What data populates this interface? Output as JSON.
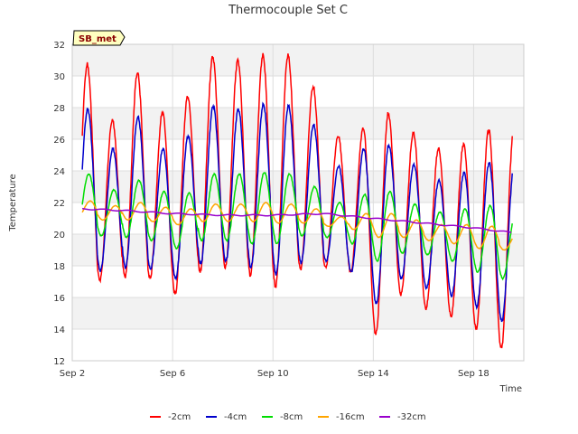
{
  "chart_data": {
    "type": "line",
    "title": "Thermocouple Set C",
    "xlabel": "Time",
    "ylabel": "Temperature",
    "station_badge": "SB_met",
    "x_ticks": [
      "Sep 2",
      "Sep 6",
      "Sep 10",
      "Sep 14",
      "Sep 18"
    ],
    "x_tick_days": [
      2,
      6,
      10,
      14,
      18
    ],
    "xlim_days": [
      2,
      20
    ],
    "ylim": [
      12,
      32
    ],
    "y_ticks": [
      12,
      14,
      16,
      18,
      20,
      22,
      24,
      26,
      28,
      30,
      32
    ],
    "grid": true,
    "legend_position": "bottom",
    "series": [
      {
        "name": "-2cm",
        "color": "#ff0000",
        "daily_max": [
          30.7,
          27.2,
          30.2,
          27.7,
          28.7,
          31.2,
          31.0,
          31.3,
          31.3,
          29.3,
          26.2,
          26.7,
          27.6,
          26.4,
          25.4,
          25.7,
          26.6,
          26.6
        ],
        "daily_min": [
          17.9,
          17.1,
          17.3,
          17.2,
          16.2,
          17.6,
          17.9,
          17.4,
          16.7,
          17.8,
          17.9,
          17.6,
          13.7,
          16.2,
          15.3,
          14.8,
          14.0,
          12.8
        ]
      },
      {
        "name": "-4cm",
        "color": "#0000cc",
        "daily_max": [
          27.9,
          25.4,
          27.4,
          25.4,
          26.2,
          28.1,
          27.9,
          28.2,
          28.1,
          26.9,
          24.3,
          25.4,
          25.6,
          24.4,
          23.4,
          23.9,
          24.5,
          24.4
        ],
        "daily_min": [
          18.6,
          17.7,
          17.9,
          17.8,
          17.2,
          18.1,
          18.3,
          17.9,
          17.5,
          18.2,
          18.3,
          17.6,
          15.6,
          17.2,
          16.6,
          16.1,
          15.4,
          14.5
        ],
        "end_value": 17.6
      },
      {
        "name": "-8cm",
        "color": "#00dd00",
        "daily_max": [
          23.8,
          22.8,
          23.4,
          22.7,
          22.6,
          23.8,
          23.8,
          23.9,
          23.8,
          23.0,
          22.0,
          22.5,
          22.7,
          21.9,
          21.4,
          21.6,
          21.8,
          21.2
        ],
        "daily_min": [
          20.2,
          19.9,
          19.8,
          19.6,
          19.1,
          19.6,
          19.6,
          19.4,
          19.4,
          19.9,
          19.8,
          19.4,
          18.3,
          18.8,
          18.7,
          18.3,
          17.6,
          17.2
        ],
        "start_value": 21.0,
        "end_value": 19.0
      },
      {
        "name": "-16cm",
        "color": "#ffa500",
        "daily_max": [
          22.1,
          21.8,
          22.0,
          21.7,
          21.6,
          21.9,
          21.9,
          22.0,
          21.9,
          21.6,
          21.1,
          21.3,
          21.3,
          20.9,
          20.6,
          20.6,
          20.5,
          20.0
        ],
        "daily_min": [
          21.1,
          20.9,
          20.9,
          20.8,
          20.6,
          20.8,
          20.8,
          20.8,
          20.7,
          20.7,
          20.5,
          20.3,
          19.8,
          19.8,
          19.6,
          19.4,
          19.1,
          19.0
        ],
        "start_value": 21.5
      },
      {
        "name": "-32cm",
        "color": "#9900cc",
        "x_days": [
          2.4,
          4,
          6,
          8,
          10,
          12,
          14,
          16,
          18,
          19.5
        ],
        "y": [
          21.6,
          21.5,
          21.3,
          21.2,
          21.2,
          21.3,
          21.0,
          20.7,
          20.4,
          20.1
        ]
      }
    ]
  }
}
